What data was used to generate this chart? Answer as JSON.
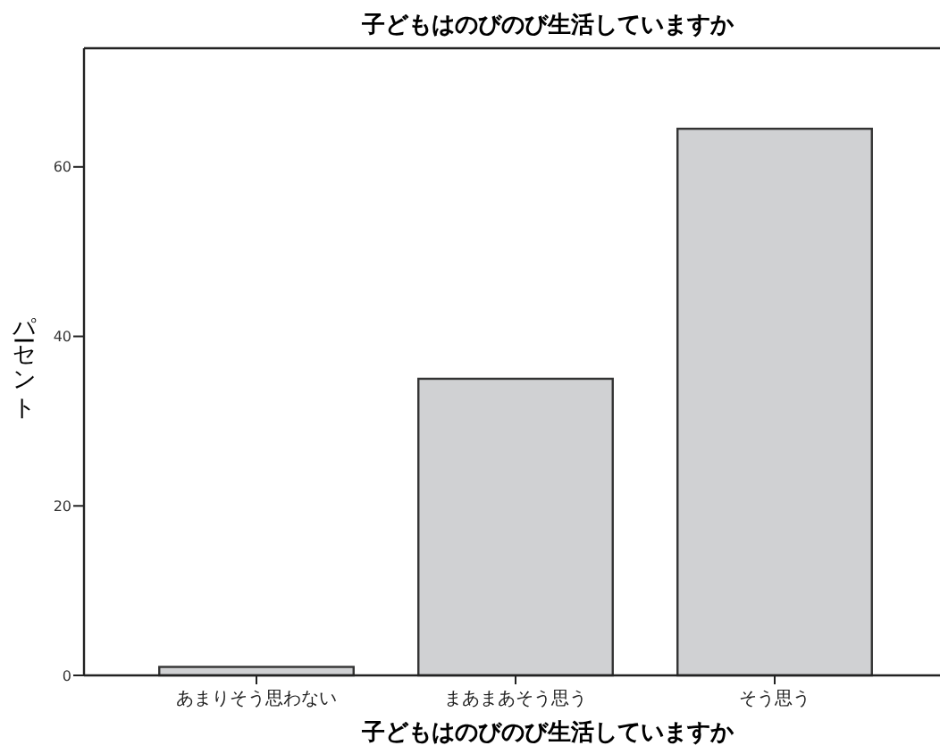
{
  "chart_data": {
    "type": "bar",
    "title": "子どもはのびのび生活していますか",
    "xlabel": "子どもはのびのび生活していますか",
    "ylabel": "パーセント",
    "categories": [
      "あまりそう思わない",
      "まあまあそう思う",
      "そう思う"
    ],
    "values": [
      1,
      35,
      64.5
    ],
    "color": "#d0d1d3",
    "ylim": [
      0,
      74
    ],
    "yticks": [
      0,
      20,
      40,
      60
    ]
  }
}
